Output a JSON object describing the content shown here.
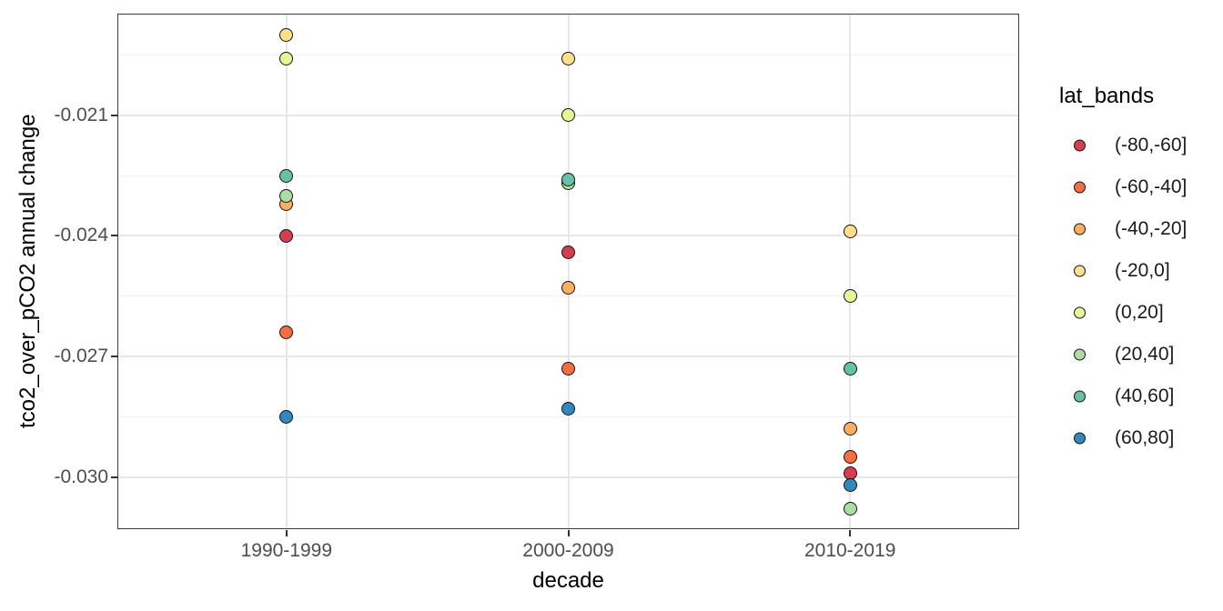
{
  "figure": {
    "background": "#ffffff",
    "panel_border_color": "#3c3c3c",
    "grid_major_color": "#e7e7e7",
    "grid_minor_color": "#f2f2f2",
    "axis_text_color": "#4d4d4d",
    "axis_title_color": "#000000",
    "point_stroke_color": "#141414"
  },
  "chart_data": {
    "type": "scatter",
    "title": "",
    "xlabel": "decade",
    "ylabel": "tco2_over_pCO2 annual change",
    "categories": [
      "1990-1999",
      "2000-2009",
      "2010-2019"
    ],
    "ylim": [
      -0.0313,
      -0.01847
    ],
    "y_major_ticks": [
      {
        "value": -0.021,
        "label": "-0.021"
      },
      {
        "value": -0.024,
        "label": "-0.024"
      },
      {
        "value": -0.027,
        "label": "-0.027"
      },
      {
        "value": -0.03,
        "label": "-0.030"
      }
    ],
    "y_minor_ticks": [
      -0.0195,
      -0.0225,
      -0.0255,
      -0.0285
    ],
    "grid": true,
    "legend": {
      "title": "lat_bands",
      "position": "right"
    },
    "series": [
      {
        "name": "(-80,-60]",
        "color": "#d53e4f",
        "values": [
          -0.024,
          -0.0244,
          -0.0299
        ]
      },
      {
        "name": "(-60,-40]",
        "color": "#f46d43",
        "values": [
          -0.0264,
          -0.0273,
          -0.0295
        ]
      },
      {
        "name": "(-40,-20]",
        "color": "#fdae61",
        "values": [
          -0.0232,
          -0.0253,
          -0.0288
        ]
      },
      {
        "name": "(-20,0]",
        "color": "#fee08b",
        "values": [
          -0.019,
          -0.0196,
          -0.0239
        ]
      },
      {
        "name": "(0,20]",
        "color": "#e6f598",
        "values": [
          -0.0196,
          -0.021,
          -0.0255
        ]
      },
      {
        "name": "(20,40]",
        "color": "#abdda4",
        "values": [
          -0.023,
          -0.0227,
          -0.0308
        ]
      },
      {
        "name": "(40,60]",
        "color": "#66c2a5",
        "values": [
          -0.0225,
          -0.0226,
          -0.0273
        ]
      },
      {
        "name": "(60,80]",
        "color": "#3288bd",
        "values": [
          -0.0285,
          -0.0283,
          -0.0302
        ]
      }
    ]
  }
}
